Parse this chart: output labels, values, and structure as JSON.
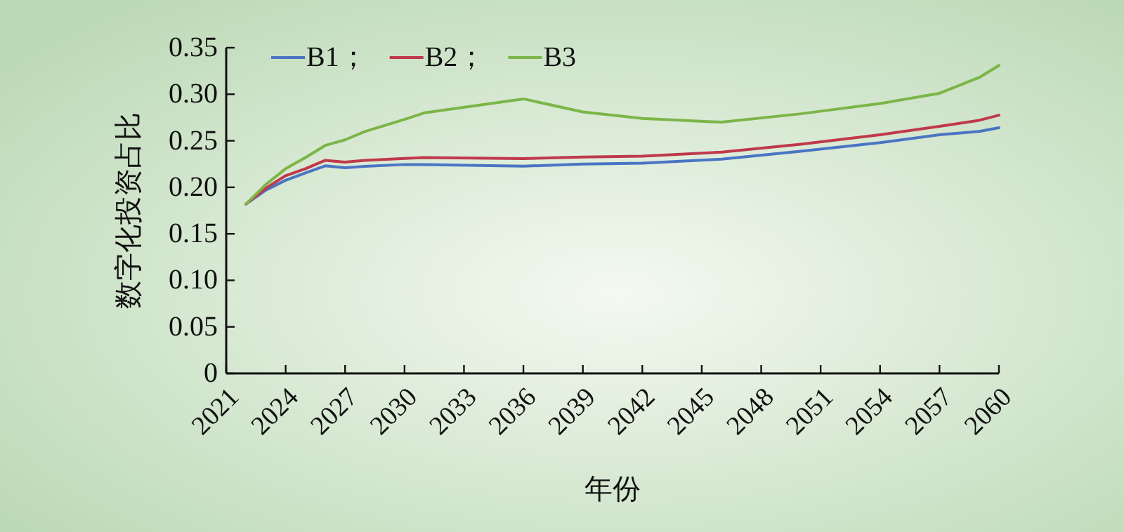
{
  "chart_data": {
    "type": "line",
    "xlabel": "年份",
    "ylabel": "数字化投资占比",
    "x": [
      2022,
      2023,
      2024,
      2025,
      2026,
      2027,
      2028,
      2030,
      2031,
      2036,
      2039,
      2042,
      2046,
      2050,
      2054,
      2057,
      2059,
      2060
    ],
    "series": [
      {
        "name": "B1；",
        "color": "#4a74c4",
        "values": [
          0.182,
          0.197,
          0.2075,
          0.2155,
          0.223,
          0.221,
          0.2225,
          0.2245,
          0.2245,
          0.2227,
          0.225,
          0.226,
          0.2303,
          0.2387,
          0.248,
          0.2565,
          0.26,
          0.264
        ]
      },
      {
        "name": "B2；",
        "color": "#c0394b",
        "values": [
          0.182,
          0.199,
          0.2125,
          0.22,
          0.229,
          0.227,
          0.229,
          0.231,
          0.232,
          0.2308,
          0.2325,
          0.2335,
          0.2378,
          0.2463,
          0.2565,
          0.2655,
          0.272,
          0.2775
        ]
      },
      {
        "name": "B3",
        "color": "#7cb548",
        "values": [
          0.182,
          0.203,
          0.22,
          0.232,
          0.245,
          0.251,
          0.26,
          0.273,
          0.28,
          0.295,
          0.281,
          0.274,
          0.27,
          0.279,
          0.29,
          0.301,
          0.318,
          0.331
        ]
      }
    ],
    "xlim": [
      2021,
      2060
    ],
    "xticks": [
      2021,
      2024,
      2027,
      2030,
      2033,
      2036,
      2039,
      2042,
      2045,
      2048,
      2051,
      2054,
      2057,
      2060
    ],
    "ylim": [
      0,
      0.35
    ],
    "yticks": [
      {
        "value": 0,
        "label": "0"
      },
      {
        "value": 0.05,
        "label": "0.05"
      },
      {
        "value": 0.1,
        "label": "0.10"
      },
      {
        "value": 0.15,
        "label": "0.15"
      },
      {
        "value": 0.2,
        "label": "0.20"
      },
      {
        "value": 0.25,
        "label": "0.25"
      },
      {
        "value": 0.3,
        "label": "0.30"
      },
      {
        "value": 0.35,
        "label": "0.35"
      }
    ],
    "grid": false,
    "legend": "top left",
    "marker": "none",
    "line_style": "solid"
  }
}
